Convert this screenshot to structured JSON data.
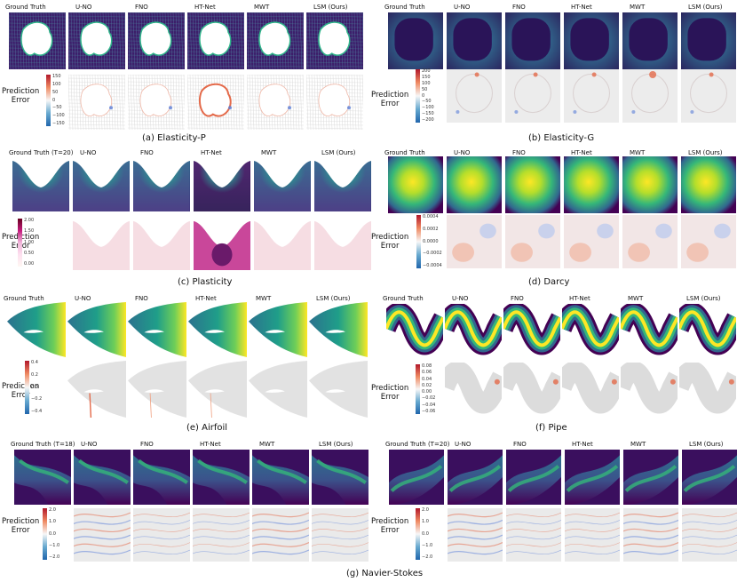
{
  "panels": [
    {
      "key": "elasticity_p",
      "caption": "(a) Elasticity-P",
      "columns": [
        "Ground Truth",
        "U-NO",
        "FNO",
        "HT-Net",
        "MWT",
        "LSM (Ours)"
      ],
      "row_label": [
        "Prediction",
        "Error"
      ],
      "colorbar_ticks": [
        "150",
        "100",
        "50",
        "0",
        "−50",
        "−100",
        "−150"
      ]
    },
    {
      "key": "elasticity_g",
      "caption": "(b) Elasticity-G",
      "columns": [
        "Ground Truth",
        "U-NO",
        "FNO",
        "HT-Net",
        "MWT",
        "LSM (Ours)"
      ],
      "row_label": [
        "Prediction",
        "Error"
      ],
      "colorbar_ticks": [
        "200",
        "150",
        "100",
        "50",
        "0",
        "−50",
        "−100",
        "−150",
        "−200"
      ]
    },
    {
      "key": "plasticity",
      "caption": "(c) Plasticity",
      "columns": [
        "Ground Truth (T=20)",
        "U-NO",
        "FNO",
        "HT-Net",
        "MWT",
        "LSM (Ours)"
      ],
      "row_label": [
        "Prediction",
        "Error"
      ],
      "colorbar_ticks": [
        "2.00",
        "1.50",
        "1.00",
        "0.50",
        "0.00"
      ]
    },
    {
      "key": "darcy",
      "caption": "(d) Darcy",
      "columns": [
        "Ground Truth",
        "U-NO",
        "FNO",
        "HT-Net",
        "MWT",
        "LSM (Ours)"
      ],
      "row_label": [
        "Prediction",
        "Error"
      ],
      "colorbar_ticks": [
        "0.0004",
        "0.0002",
        "0.0000",
        "−0.0002",
        "−0.0004"
      ]
    },
    {
      "key": "airfoil",
      "caption": "(e) Airfoil",
      "columns": [
        "Ground Truth",
        "U-NO",
        "FNO",
        "HT-Net",
        "MWT",
        "LSM (Ours)"
      ],
      "row_label": [
        "Prediction",
        "Error"
      ],
      "colorbar_ticks": [
        "0.4",
        "0.2",
        "0.0",
        "−0.2",
        "−0.4"
      ]
    },
    {
      "key": "pipe",
      "caption": "(f) Pipe",
      "columns": [
        "Ground Truth",
        "U-NO",
        "FNO",
        "HT-Net",
        "MWT",
        "LSM (Ours)"
      ],
      "row_label": [
        "Prediction",
        "Error"
      ],
      "colorbar_ticks": [
        "0.08",
        "0.06",
        "0.04",
        "0.02",
        "0.00",
        "−0.02",
        "−0.04",
        "−0.06"
      ]
    },
    {
      "key": "ns_left",
      "caption": "",
      "columns": [
        "Ground Truth (T=18)",
        "U-NO",
        "FNO",
        "HT-Net",
        "MWT",
        "LSM (Ours)"
      ],
      "row_label": [
        "Prediction",
        "Error"
      ],
      "colorbar_ticks": [
        "2.0",
        "1.0",
        "0.0",
        "−1.0",
        "−2.0"
      ]
    },
    {
      "key": "ns_right",
      "caption": "",
      "columns": [
        "Ground Truth (T=20)",
        "U-NO",
        "FNO",
        "HT-Net",
        "MWT",
        "LSM (Ours)"
      ],
      "row_label": [
        "Prediction",
        "Error"
      ],
      "colorbar_ticks": [
        "2.0",
        "1.0",
        "0.0",
        "−1.0",
        "−2.0"
      ]
    }
  ],
  "bottom_caption": "(g) Navier-Stokes",
  "colors": {
    "viridis_dark": "#440154",
    "viridis_mid": "#21918c",
    "viridis_light": "#fde725",
    "error_gray": "#e4e4e4",
    "error_red": "#e06040",
    "error_blue": "#4a6fd0"
  }
}
